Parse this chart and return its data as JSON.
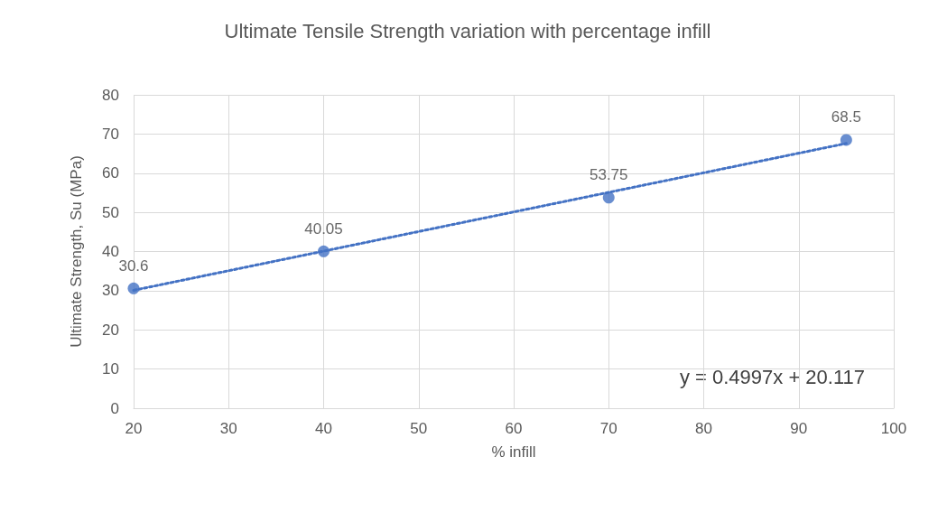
{
  "chart_data": {
    "type": "scatter",
    "title": "Ultimate Tensile Strength variation with percentage infill",
    "xlabel": "% infill",
    "ylabel": "Ultimate Strength, Su (MPa)",
    "series": [
      {
        "color": "#4472c4",
        "x": [
          20,
          40,
          70,
          95
        ],
        "values": [
          30.6,
          40.05,
          53.75,
          68.5
        ],
        "value_labels": [
          "30.6",
          "40.05",
          "53.75",
          "68.5"
        ],
        "marker": "circle"
      },
      {
        "type": "line",
        "color": "#4472c4",
        "x": [
          20,
          95
        ],
        "values": [
          30.1,
          67.6
        ],
        "line_style": "dotted",
        "marker": "none"
      }
    ],
    "xlim": [
      20,
      100
    ],
    "xticks": [
      20,
      30,
      40,
      50,
      60,
      70,
      80,
      90,
      100
    ],
    "ylim": [
      0,
      80
    ],
    "yticks": [
      0,
      10,
      20,
      30,
      40,
      50,
      60,
      70,
      80
    ],
    "grid": true,
    "annotations": [
      "y = 0.4997x + 20.117"
    ]
  }
}
